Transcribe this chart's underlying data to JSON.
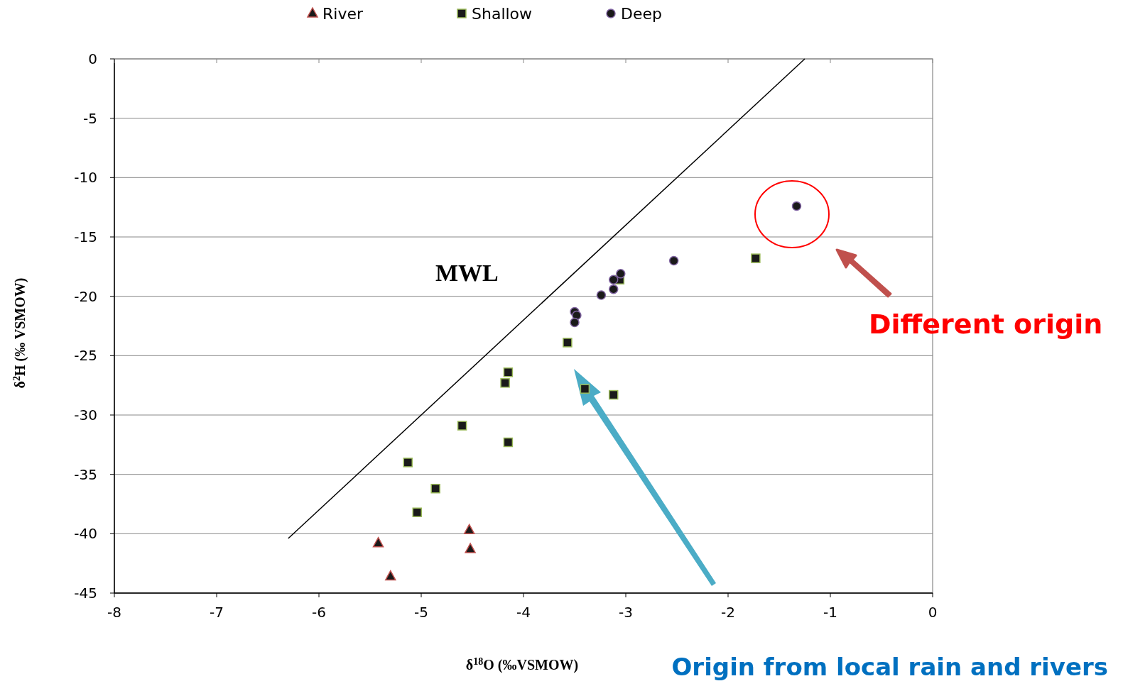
{
  "chart_data": {
    "type": "scatter",
    "xlabel": "δ$^{18}$O (‰VSMOW)",
    "ylabel": "δ$^{2}$H (‰ VSMOW)",
    "xlim": [
      -8,
      0
    ],
    "xticks": [
      -8,
      -7,
      -6,
      -5,
      -4,
      -3,
      -2,
      -1,
      0
    ],
    "ylim": [
      -45,
      0
    ],
    "yticks": [
      -45,
      -40,
      -35,
      -30,
      -25,
      -20,
      -15,
      -10,
      -5,
      0
    ],
    "grid": "y",
    "legend": "top",
    "series": [
      {
        "name": "River",
        "color": "#c0504d",
        "marker": "triangle",
        "x": [
          -5.42,
          -5.3,
          -4.53,
          -4.52
        ],
        "values": [
          -40.8,
          -43.6,
          -39.7,
          -41.3
        ]
      },
      {
        "name": "Shallow",
        "color": "#9bbb59",
        "marker": "square",
        "x": [
          -1.73,
          -3.06,
          -3.57,
          -4.15,
          -4.18,
          -3.4,
          -3.12,
          -4.6,
          -4.15,
          -5.13,
          -4.86,
          -5.04
        ],
        "values": [
          -16.8,
          -18.6,
          -23.9,
          -26.4,
          -27.3,
          -27.8,
          -28.3,
          -30.9,
          -32.3,
          -34.0,
          -36.2,
          -38.2
        ]
      },
      {
        "name": "Deep",
        "color": "#8064a2",
        "marker": "circle",
        "x": [
          -1.33,
          -2.53,
          -3.05,
          -3.12,
          -3.12,
          -3.24,
          -3.5,
          -3.48,
          -3.5
        ],
        "values": [
          -12.4,
          -17.0,
          -18.1,
          -18.6,
          -19.4,
          -19.9,
          -21.3,
          -21.6,
          -22.2
        ]
      },
      {
        "type": "line",
        "color": "#000000",
        "marker": "none",
        "x": [
          -6.3,
          -1.25
        ],
        "values": [
          -40.4,
          0
        ]
      }
    ],
    "annotations": [
      "MWL",
      "Different origin",
      "Origin from local rain and rivers"
    ]
  }
}
